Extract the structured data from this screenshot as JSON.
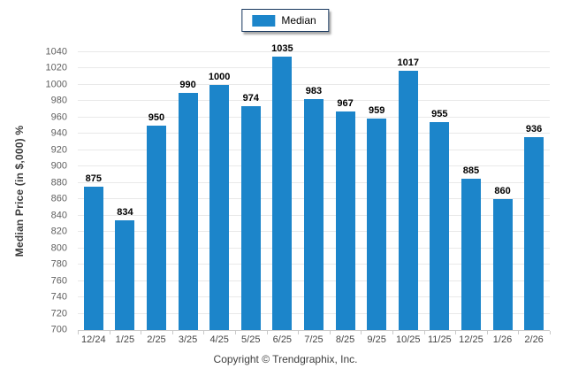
{
  "legend": {
    "items": [
      {
        "label": "Median",
        "color": "#1c85ca"
      }
    ]
  },
  "footer": {
    "copyright": "Copyright © Trendgraphix, Inc."
  },
  "chart_data": {
    "type": "bar",
    "title": "",
    "categories": [
      "12/24",
      "1/25",
      "2/25",
      "3/25",
      "4/25",
      "5/25",
      "6/25",
      "7/25",
      "8/25",
      "9/25",
      "10/25",
      "11/25",
      "12/25",
      "1/26",
      "2/26"
    ],
    "series": [
      {
        "name": "Median",
        "values": [
          875,
          834,
          950,
          990,
          1000,
          974,
          1035,
          983,
          967,
          959,
          1017,
          955,
          885,
          860,
          936
        ]
      }
    ],
    "xlabel": "",
    "ylabel": "Median Price (in $,000) %",
    "ylim": [
      700,
      1040
    ],
    "ytick_step": 20,
    "bar_color": "#1c85ca",
    "grid": "horizontal",
    "legend_position": "top-center",
    "value_labels": true
  }
}
